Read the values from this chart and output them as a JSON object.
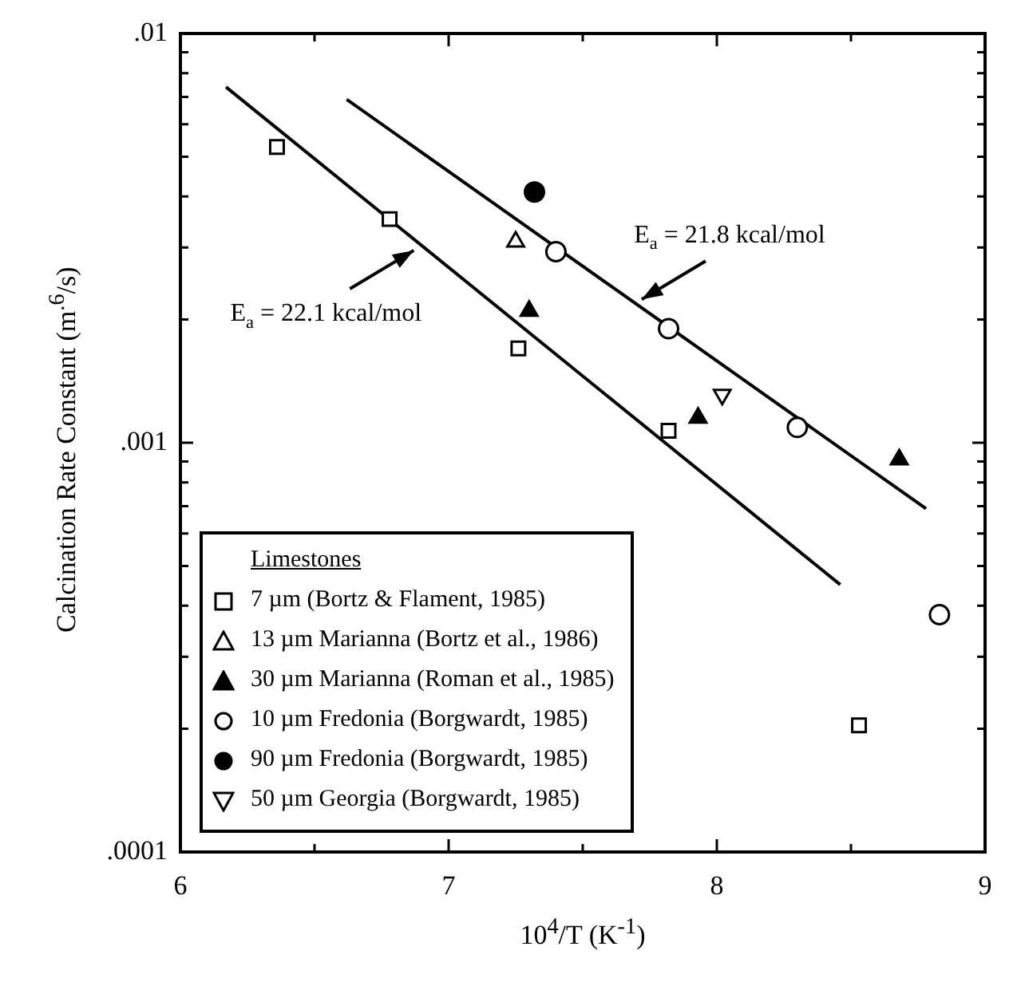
{
  "chart_data": {
    "type": "scatter",
    "xlabel": "10$^{4}$/T (K$^{-1}$)",
    "ylabel": "Calcination Rate Constant (m$^{.6}$/s)",
    "legend_title": "Limestones",
    "legend": "bottom left",
    "log": "y",
    "xlim": [
      6,
      9
    ],
    "xticks": [
      6,
      {
        "value": 6.5,
        "label": null
      },
      7,
      {
        "value": 7.5,
        "label": null
      },
      8,
      {
        "value": 8.5,
        "label": null
      },
      9
    ],
    "ylim": [
      0.0001,
      0.01
    ],
    "yticks": [
      {
        "value": 0.0001,
        "label": ".0001"
      },
      {
        "value": 0.0002,
        "label": null
      },
      {
        "value": 0.0003,
        "label": null
      },
      {
        "value": 0.0004,
        "label": null
      },
      {
        "value": 0.0005,
        "label": null
      },
      {
        "value": 0.0006,
        "label": null
      },
      {
        "value": 0.0007,
        "label": null
      },
      {
        "value": 0.0008,
        "label": null
      },
      {
        "value": 0.0009,
        "label": null
      },
      {
        "value": 0.001,
        "label": ".001"
      },
      {
        "value": 0.002,
        "label": null
      },
      {
        "value": 0.003,
        "label": null
      },
      {
        "value": 0.004,
        "label": null
      },
      {
        "value": 0.005,
        "label": null
      },
      {
        "value": 0.006,
        "label": null
      },
      {
        "value": 0.007,
        "label": null
      },
      {
        "value": 0.008,
        "label": null
      },
      {
        "value": 0.009,
        "label": null
      },
      {
        "value": 0.01,
        "label": ".01"
      }
    ],
    "grid": false,
    "annotations": [
      {
        "text": "E$_{a}$ = 22.1 kcal/mol",
        "x": 6.87,
        "y": 0.00295
      },
      {
        "text": "E$_{a}$ = 21.8 kcal/mol",
        "x": 7.72,
        "y": 0.00224
      }
    ],
    "series": [
      {
        "name": "7 µm (Bortz & Flament, 1985)",
        "color": "#000000",
        "marker": "square-open",
        "x": [
          6.36,
          6.78,
          7.26,
          7.82,
          8.53
        ],
        "values": [
          0.00528,
          0.00352,
          0.0017,
          0.00107,
          0.000204
        ]
      },
      {
        "name": "13 µm Marianna (Bortz et al., 1986)",
        "color": "#000000",
        "marker": "triangle-open",
        "x": [
          7.25
        ],
        "values": [
          0.0031
        ]
      },
      {
        "name": "30 µm Marianna (Roman et al., 1985)",
        "color": "#000000",
        "marker": "triangle",
        "x": [
          7.3,
          7.93,
          8.68
        ],
        "values": [
          0.0021,
          0.00115,
          0.00091
        ]
      },
      {
        "name": "10 µm Fredonia (Borgwardt, 1985)",
        "color": "#000000",
        "marker": "circle-open",
        "x": [
          7.4,
          7.82,
          8.3,
          8.83
        ],
        "values": [
          0.00293,
          0.0019,
          0.00109,
          0.00038
        ]
      },
      {
        "name": "90 µm Fredonia (Borgwardt, 1985)",
        "color": "#000000",
        "marker": "circle",
        "x": [
          7.32
        ],
        "values": [
          0.0041
        ]
      },
      {
        "name": "50 µm Georgia (Borgwardt, 1985)",
        "color": "#000000",
        "marker": "triangle-down-open",
        "x": [
          8.02
        ],
        "values": [
          0.00131
        ]
      },
      {
        "type": "line",
        "color": "#000000",
        "x": [
          6.17,
          8.46
        ],
        "values": [
          0.0074,
          0.00045
        ]
      },
      {
        "type": "line",
        "color": "#000000",
        "x": [
          6.62,
          8.78
        ],
        "values": [
          0.0069,
          0.00069
        ]
      }
    ]
  }
}
